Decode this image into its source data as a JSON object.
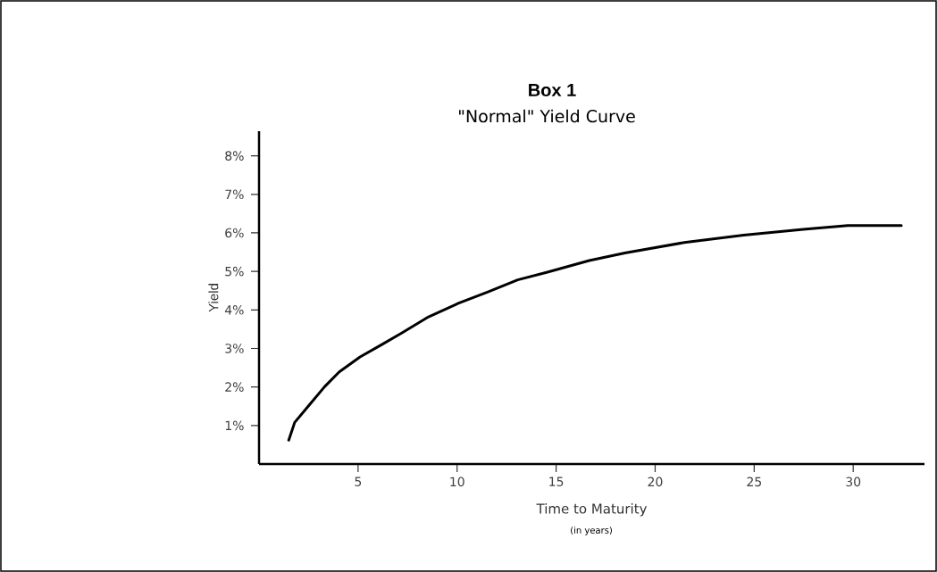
{
  "chart_data": {
    "type": "line",
    "title": "Box 1",
    "subtitle": "\"Normal\" Yield Curve",
    "xlabel": "Time to Maturity",
    "ylabel": "Yield",
    "annotations": [
      "(in years)"
    ],
    "x": [
      1.5,
      1.8,
      2.55,
      3.3,
      4.05,
      5.1,
      6.16,
      7.2,
      8.56,
      10.06,
      11.56,
      13.06,
      14.56,
      16.67,
      18.47,
      21.47,
      24.47,
      27.48,
      29.73,
      32.43
    ],
    "values": [
      0.62,
      1.08,
      1.54,
      2.0,
      2.39,
      2.78,
      3.09,
      3.4,
      3.82,
      4.17,
      4.47,
      4.78,
      4.98,
      5.28,
      5.48,
      5.75,
      5.94,
      6.09,
      6.19,
      6.19
    ],
    "color": "#000000",
    "line_style": "solid",
    "marker": "none",
    "grid": false,
    "xlim": [
      0,
      33.6
    ],
    "ylim": [
      0,
      8.64
    ],
    "xticks": [
      5,
      10,
      15,
      20,
      25,
      30
    ],
    "yticks": [
      {
        "value": 1,
        "label": "1%"
      },
      {
        "value": 2,
        "label": "2%"
      },
      {
        "value": 3,
        "label": "3%"
      },
      {
        "value": 4,
        "label": "4%"
      },
      {
        "value": 5,
        "label": "5%"
      },
      {
        "value": 6,
        "label": "6%"
      },
      {
        "value": 7,
        "label": "7%"
      },
      {
        "value": 8,
        "label": "8%"
      }
    ]
  }
}
